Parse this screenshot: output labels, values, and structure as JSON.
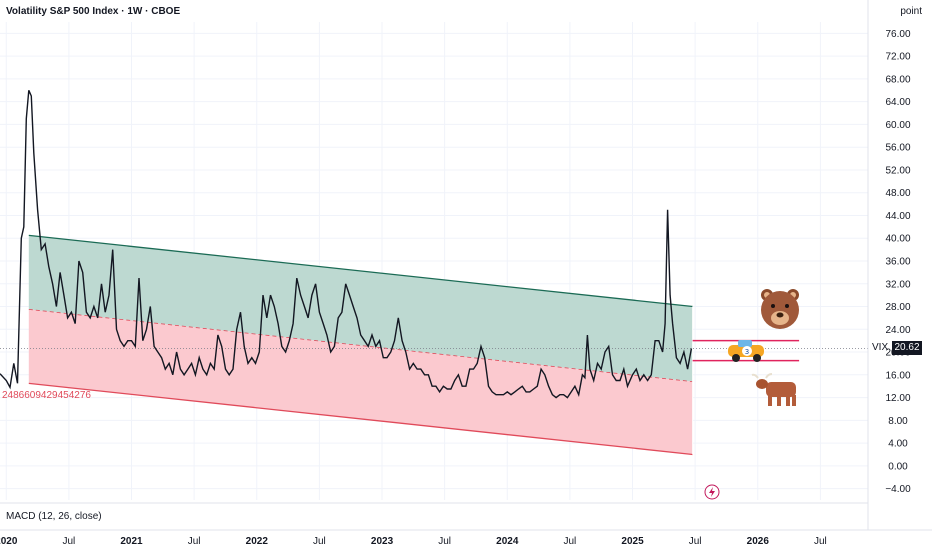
{
  "header": {
    "title": "Volatility S&P 500 Index · 1W · CBOE",
    "unit": "point"
  },
  "indicator": {
    "label": "MACD (12, 26, close)"
  },
  "price_tag": {
    "symbol": "VIX",
    "value": "20.62"
  },
  "annotation_text": "2486609429454276",
  "colors": {
    "line": "#131722",
    "channel_upper": "#b9d7cf",
    "channel_lower": "#fbc6cc",
    "channel_top_line": "#1b6b55",
    "channel_bottom_line": "#e04a5a",
    "target_line": "#e0245e"
  },
  "icons": [
    "bear-icon",
    "bull-icon",
    "race-car-icon",
    "lightning-icon"
  ],
  "chart_data": {
    "type": "line",
    "title": "Volatility S&P 500 Index · 1W · CBOE",
    "ylabel": "point",
    "ylim": [
      -6,
      78
    ],
    "y_ticks": [
      76,
      72,
      68,
      64,
      60,
      56,
      52,
      48,
      44,
      40,
      36,
      32,
      28,
      24,
      20,
      16,
      12,
      8,
      4,
      0,
      -4
    ],
    "y_tick_labels": [
      "76.00",
      "72.00",
      "68.00",
      "64.00",
      "60.00",
      "56.00",
      "52.00",
      "48.00",
      "44.00",
      "40.00",
      "36.00",
      "32.00",
      "28.00",
      "24.00",
      "20.00",
      "16.00",
      "12.00",
      "8.00",
      "4.00",
      "0.00",
      "−4.00"
    ],
    "x_ticks": [
      {
        "label": "2020",
        "t": 2020.0,
        "year": true
      },
      {
        "label": "Jul",
        "t": 2020.5,
        "year": false
      },
      {
        "label": "2021",
        "t": 2021.0,
        "year": true
      },
      {
        "label": "Jul",
        "t": 2021.5,
        "year": false
      },
      {
        "label": "2022",
        "t": 2022.0,
        "year": true
      },
      {
        "label": "Jul",
        "t": 2022.5,
        "year": false
      },
      {
        "label": "2023",
        "t": 2023.0,
        "year": true
      },
      {
        "label": "Jul",
        "t": 2023.5,
        "year": false
      },
      {
        "label": "2024",
        "t": 2024.0,
        "year": true
      },
      {
        "label": "Jul",
        "t": 2024.5,
        "year": false
      },
      {
        "label": "2025",
        "t": 2025.0,
        "year": true
      },
      {
        "label": "Jul",
        "t": 2025.5,
        "year": false
      },
      {
        "label": "2026",
        "t": 2026.0,
        "year": true
      },
      {
        "label": "Jul",
        "t": 2026.5,
        "year": false
      }
    ],
    "xlim": [
      2019.95,
      2026.88
    ],
    "series": [
      {
        "values": [
          [
            2019.95,
            16.2
          ],
          [
            2020.0,
            15.0
          ],
          [
            2020.03,
            13.8
          ],
          [
            2020.06,
            18.0
          ],
          [
            2020.09,
            14.5
          ],
          [
            2020.12,
            40.0
          ],
          [
            2020.14,
            42.0
          ],
          [
            2020.16,
            61.0
          ],
          [
            2020.18,
            66.0
          ],
          [
            2020.2,
            65.0
          ],
          [
            2020.22,
            55.0
          ],
          [
            2020.25,
            45.0
          ],
          [
            2020.28,
            38.0
          ],
          [
            2020.31,
            39.0
          ],
          [
            2020.34,
            35.0
          ],
          [
            2020.37,
            32.0
          ],
          [
            2020.4,
            28.0
          ],
          [
            2020.43,
            34.0
          ],
          [
            2020.46,
            30.0
          ],
          [
            2020.49,
            26.0
          ],
          [
            2020.52,
            27.0
          ],
          [
            2020.55,
            25.0
          ],
          [
            2020.58,
            36.0
          ],
          [
            2020.61,
            34.0
          ],
          [
            2020.64,
            27.0
          ],
          [
            2020.67,
            26.0
          ],
          [
            2020.7,
            28.0
          ],
          [
            2020.73,
            26.0
          ],
          [
            2020.76,
            32.0
          ],
          [
            2020.79,
            27.0
          ],
          [
            2020.82,
            30.0
          ],
          [
            2020.85,
            38.0
          ],
          [
            2020.88,
            24.0
          ],
          [
            2020.91,
            22.0
          ],
          [
            2020.94,
            21.0
          ],
          [
            2020.97,
            22.0
          ],
          [
            2021.0,
            22.0
          ],
          [
            2021.03,
            21.0
          ],
          [
            2021.06,
            33.0
          ],
          [
            2021.09,
            22.0
          ],
          [
            2021.12,
            24.0
          ],
          [
            2021.15,
            28.0
          ],
          [
            2021.18,
            21.0
          ],
          [
            2021.21,
            20.0
          ],
          [
            2021.24,
            19.0
          ],
          [
            2021.27,
            17.0
          ],
          [
            2021.3,
            18.0
          ],
          [
            2021.33,
            16.0
          ],
          [
            2021.36,
            20.0
          ],
          [
            2021.39,
            17.0
          ],
          [
            2021.42,
            16.0
          ],
          [
            2021.45,
            17.0
          ],
          [
            2021.48,
            18.0
          ],
          [
            2021.51,
            16.0
          ],
          [
            2021.54,
            19.0
          ],
          [
            2021.57,
            17.0
          ],
          [
            2021.6,
            16.0
          ],
          [
            2021.63,
            18.0
          ],
          [
            2021.66,
            17.0
          ],
          [
            2021.69,
            23.0
          ],
          [
            2021.72,
            21.0
          ],
          [
            2021.75,
            17.0
          ],
          [
            2021.78,
            16.0
          ],
          [
            2021.81,
            17.0
          ],
          [
            2021.84,
            24.0
          ],
          [
            2021.87,
            27.0
          ],
          [
            2021.9,
            21.0
          ],
          [
            2021.93,
            18.0
          ],
          [
            2021.96,
            19.0
          ],
          [
            2021.99,
            18.0
          ],
          [
            2022.02,
            20.0
          ],
          [
            2022.05,
            30.0
          ],
          [
            2022.08,
            26.0
          ],
          [
            2022.11,
            30.0
          ],
          [
            2022.14,
            28.0
          ],
          [
            2022.17,
            25.0
          ],
          [
            2022.2,
            21.0
          ],
          [
            2022.23,
            20.0
          ],
          [
            2022.26,
            22.0
          ],
          [
            2022.29,
            25.0
          ],
          [
            2022.32,
            33.0
          ],
          [
            2022.35,
            30.0
          ],
          [
            2022.38,
            28.0
          ],
          [
            2022.41,
            26.0
          ],
          [
            2022.44,
            30.0
          ],
          [
            2022.47,
            32.0
          ],
          [
            2022.5,
            27.0
          ],
          [
            2022.53,
            25.0
          ],
          [
            2022.56,
            23.0
          ],
          [
            2022.59,
            20.0
          ],
          [
            2022.62,
            21.0
          ],
          [
            2022.65,
            26.0
          ],
          [
            2022.68,
            27.0
          ],
          [
            2022.71,
            32.0
          ],
          [
            2022.74,
            30.0
          ],
          [
            2022.77,
            28.0
          ],
          [
            2022.8,
            26.0
          ],
          [
            2022.83,
            23.0
          ],
          [
            2022.86,
            22.0
          ],
          [
            2022.89,
            21.0
          ],
          [
            2022.92,
            23.0
          ],
          [
            2022.95,
            21.0
          ],
          [
            2022.98,
            22.0
          ],
          [
            2023.01,
            19.0
          ],
          [
            2023.04,
            19.0
          ],
          [
            2023.07,
            20.0
          ],
          [
            2023.1,
            22.0
          ],
          [
            2023.13,
            26.0
          ],
          [
            2023.16,
            22.0
          ],
          [
            2023.19,
            20.0
          ],
          [
            2023.22,
            17.0
          ],
          [
            2023.25,
            18.0
          ],
          [
            2023.28,
            17.0
          ],
          [
            2023.31,
            17.0
          ],
          [
            2023.34,
            16.0
          ],
          [
            2023.37,
            16.0
          ],
          [
            2023.4,
            14.0
          ],
          [
            2023.43,
            14.0
          ],
          [
            2023.46,
            13.0
          ],
          [
            2023.49,
            14.0
          ],
          [
            2023.52,
            13.5
          ],
          [
            2023.55,
            13.5
          ],
          [
            2023.58,
            15.0
          ],
          [
            2023.61,
            16.0
          ],
          [
            2023.64,
            14.0
          ],
          [
            2023.67,
            14.0
          ],
          [
            2023.7,
            17.0
          ],
          [
            2023.73,
            17.0
          ],
          [
            2023.76,
            18.0
          ],
          [
            2023.79,
            21.0
          ],
          [
            2023.82,
            19.0
          ],
          [
            2023.85,
            14.0
          ],
          [
            2023.88,
            13.0
          ],
          [
            2023.91,
            12.5
          ],
          [
            2023.94,
            12.5
          ],
          [
            2023.97,
            12.5
          ],
          [
            2024.0,
            13.0
          ],
          [
            2024.03,
            12.5
          ],
          [
            2024.06,
            13.0
          ],
          [
            2024.09,
            13.5
          ],
          [
            2024.12,
            14.0
          ],
          [
            2024.15,
            13.0
          ],
          [
            2024.18,
            13.0
          ],
          [
            2024.21,
            13.5
          ],
          [
            2024.24,
            14.0
          ],
          [
            2024.27,
            17.0
          ],
          [
            2024.3,
            16.0
          ],
          [
            2024.33,
            14.0
          ],
          [
            2024.36,
            12.5
          ],
          [
            2024.39,
            12.0
          ],
          [
            2024.42,
            12.5
          ],
          [
            2024.45,
            12.5
          ],
          [
            2024.48,
            12.0
          ],
          [
            2024.51,
            13.0
          ],
          [
            2024.54,
            14.0
          ],
          [
            2024.57,
            12.5
          ],
          [
            2024.6,
            16.0
          ],
          [
            2024.62,
            15.5
          ],
          [
            2024.64,
            23.0
          ],
          [
            2024.66,
            17.0
          ],
          [
            2024.69,
            15.0
          ],
          [
            2024.72,
            18.0
          ],
          [
            2024.75,
            17.0
          ],
          [
            2024.78,
            20.0
          ],
          [
            2024.81,
            21.0
          ],
          [
            2024.84,
            16.0
          ],
          [
            2024.87,
            15.0
          ],
          [
            2024.9,
            15.0
          ],
          [
            2024.93,
            17.0
          ],
          [
            2024.96,
            14.0
          ],
          [
            2025.0,
            16.0
          ],
          [
            2025.03,
            17.0
          ],
          [
            2025.06,
            15.0
          ],
          [
            2025.09,
            16.0
          ],
          [
            2025.12,
            15.0
          ],
          [
            2025.15,
            16.0
          ],
          [
            2025.18,
            22.0
          ],
          [
            2025.21,
            22.0
          ],
          [
            2025.24,
            20.0
          ],
          [
            2025.26,
            25.0
          ],
          [
            2025.28,
            45.0
          ],
          [
            2025.3,
            30.0
          ],
          [
            2025.32,
            25.0
          ],
          [
            2025.35,
            19.0
          ],
          [
            2025.38,
            18.0
          ],
          [
            2025.41,
            20.0
          ],
          [
            2025.44,
            17.0
          ],
          [
            2025.47,
            20.62
          ]
        ]
      }
    ],
    "channel": {
      "upper_start": [
        2020.18,
        40.5
      ],
      "upper_end": [
        2025.48,
        28.0
      ],
      "mid_start": [
        2020.18,
        27.5
      ],
      "mid_end": [
        2025.48,
        14.8
      ],
      "lower_start": [
        2020.18,
        14.5
      ],
      "lower_end": [
        2025.48,
        2.0
      ],
      "left_stub_upper": [
        2019.95,
        24.0
      ],
      "left_stub_mid": [
        2019.95,
        8.0
      ],
      "left_stub_lower": [
        2019.95,
        -6.0
      ]
    },
    "target_lines": [
      {
        "t0": 2025.48,
        "t1": 2026.33,
        "y": 22.0
      },
      {
        "t0": 2025.48,
        "t1": 2026.33,
        "y": 18.5
      }
    ],
    "current_value_line": 20.62
  }
}
